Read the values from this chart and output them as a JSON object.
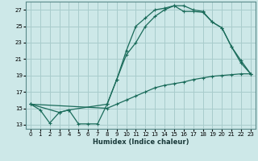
{
  "xlabel": "Humidex (Indice chaleur)",
  "bg_color": "#cde8e8",
  "grid_color": "#a8cccc",
  "line_color": "#1a6b5a",
  "xlim": [
    -0.5,
    23.5
  ],
  "ylim": [
    12.5,
    28.0
  ],
  "xticks": [
    0,
    1,
    2,
    3,
    4,
    5,
    6,
    7,
    8,
    9,
    10,
    11,
    12,
    13,
    14,
    15,
    16,
    17,
    18,
    19,
    20,
    21,
    22,
    23
  ],
  "yticks": [
    13,
    15,
    17,
    19,
    21,
    23,
    25,
    27
  ],
  "line1_x": [
    0,
    1,
    2,
    3,
    4,
    5,
    6,
    7,
    8,
    9,
    10,
    11,
    12,
    13,
    14,
    15,
    16,
    17,
    18,
    19,
    20,
    21,
    22,
    23
  ],
  "line1_y": [
    15.5,
    14.8,
    13.2,
    14.5,
    14.8,
    13.1,
    13.1,
    13.1,
    15.5,
    18.5,
    22.0,
    25.0,
    26.0,
    27.0,
    27.2,
    27.5,
    27.5,
    27.0,
    26.8,
    25.5,
    24.8,
    22.5,
    20.5,
    19.2
  ],
  "line2_x": [
    0,
    3,
    4,
    8,
    9,
    10,
    11,
    12,
    13,
    14,
    15,
    16,
    17,
    18,
    19,
    20,
    21,
    22,
    23
  ],
  "line2_y": [
    15.5,
    14.5,
    14.8,
    15.5,
    18.5,
    21.5,
    23.0,
    25.0,
    26.2,
    27.0,
    27.5,
    26.8,
    26.8,
    26.7,
    25.5,
    24.8,
    22.5,
    20.8,
    19.2
  ],
  "line3_x": [
    0,
    8,
    9,
    10,
    11,
    12,
    13,
    14,
    15,
    16,
    17,
    18,
    19,
    20,
    21,
    22,
    23
  ],
  "line3_y": [
    15.5,
    15.0,
    15.5,
    16.0,
    16.5,
    17.0,
    17.5,
    17.8,
    18.0,
    18.2,
    18.5,
    18.7,
    18.9,
    19.0,
    19.1,
    19.2,
    19.2
  ]
}
